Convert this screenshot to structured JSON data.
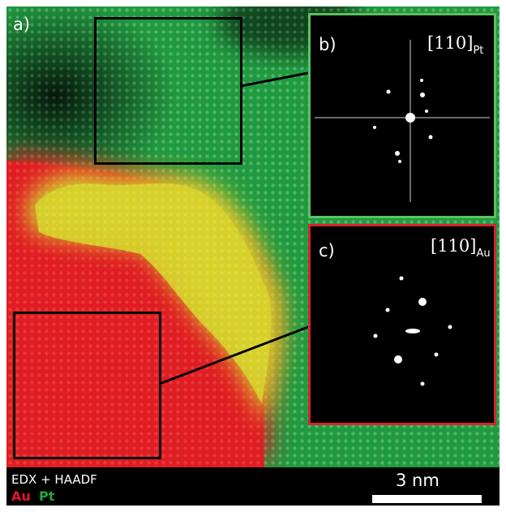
{
  "panels": {
    "main": {
      "label": "a)"
    },
    "pt_fft": {
      "label": "b)",
      "zone_main": "[110]",
      "zone_sub": "Pt",
      "border_color": "#5fbf5f"
    },
    "au_fft": {
      "label": "c)",
      "zone_main": "[110]",
      "zone_sub": "Au",
      "border_color": "#d9232e"
    }
  },
  "legend": {
    "title": "EDX + HAADF",
    "elements": [
      {
        "symbol": "Au",
        "color": "#e4162a"
      },
      {
        "symbol": "Pt",
        "color": "#1fa93e"
      }
    ]
  },
  "scale_bar": {
    "label": "3 nm"
  },
  "colors": {
    "pt": "#1fa93e",
    "au": "#e4162a",
    "overlap": "#d7d22a",
    "background": "#000000"
  }
}
